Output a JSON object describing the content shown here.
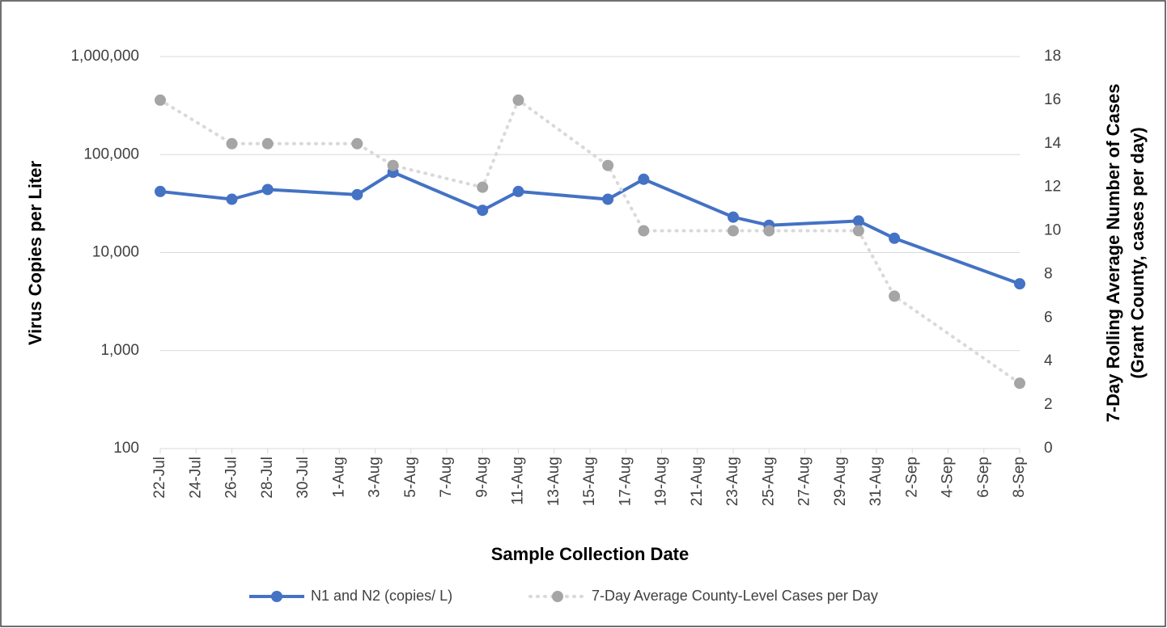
{
  "chart_data": {
    "type": "line",
    "x_label": "Sample Collection Date",
    "y_label": "Virus Copies per Liter",
    "y2_label": [
      "7-Day Rolling Average Number of Cases",
      "(Grant County, cases per day)"
    ],
    "x": [
      "22-Jul",
      "26-Jul",
      "28-Jul",
      "2-Aug",
      "4-Aug",
      "9-Aug",
      "11-Aug",
      "16-Aug",
      "18-Aug",
      "23-Aug",
      "25-Aug",
      "30-Aug",
      "1-Sep",
      "8-Sep"
    ],
    "xlim": [
      "22-Jul",
      "8-Sep"
    ],
    "xticks": [
      "22-Jul",
      "24-Jul",
      "26-Jul",
      "28-Jul",
      "30-Jul",
      "1-Aug",
      "3-Aug",
      "5-Aug",
      "7-Aug",
      "9-Aug",
      "11-Aug",
      "13-Aug",
      "15-Aug",
      "17-Aug",
      "19-Aug",
      "21-Aug",
      "23-Aug",
      "25-Aug",
      "27-Aug",
      "29-Aug",
      "31-Aug",
      "2-Sep",
      "4-Sep",
      "6-Sep",
      "8-Sep"
    ],
    "ylog": true,
    "ylim": [
      100,
      1000000
    ],
    "yticks": [
      100,
      {
        "value": 1000,
        "label": "1,000"
      },
      {
        "value": 10000,
        "label": "10,000"
      },
      {
        "value": 100000,
        "label": "100,000"
      },
      {
        "value": 1000000,
        "label": "1,000,000"
      }
    ],
    "y2lim": [
      0,
      18
    ],
    "y2ticks": [
      0,
      2,
      4,
      6,
      8,
      10,
      12,
      14,
      16,
      18
    ],
    "grid": true,
    "legend": "bottom",
    "series": [
      {
        "name": "N1 and N2 (copies/ L)",
        "color": "#4472c4",
        "line_style": "solid",
        "values": [
          42000,
          35000,
          44000,
          39000,
          66000,
          27000,
          42000,
          35000,
          56000,
          23000,
          19000,
          21000,
          14000,
          4800
        ]
      },
      {
        "name": "7-Day Average County-Level Cases per Day",
        "color": "#a5a5a5",
        "line_style": "dotted",
        "axis": "y2",
        "values": [
          16,
          14,
          14,
          14,
          13,
          12,
          16,
          13,
          10,
          10,
          10,
          10,
          7,
          3
        ]
      }
    ]
  }
}
